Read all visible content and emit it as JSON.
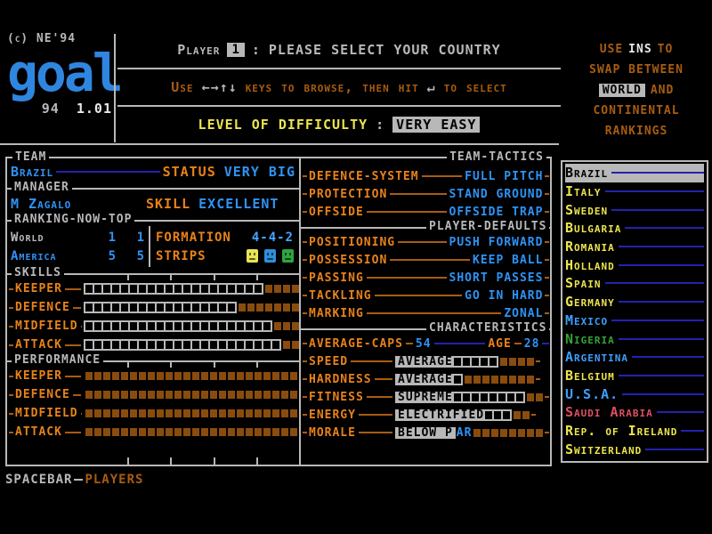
{
  "header": {
    "copyright": "(c) NE'94",
    "logo": "goal",
    "logo_small": "94",
    "version": "1.01",
    "player_label": "Player",
    "player_number": "1",
    "separator": ":",
    "prompt": "PLEASE SELECT YOUR COUNTRY",
    "browse": {
      "use": "Use",
      "arrows": "←→↑↓",
      "mid": "keys to browse, then hit",
      "enter": "↵",
      "tail": "to select"
    },
    "difficulty_label": "LEVEL OF DIFFICULTY",
    "difficulty_sep": ":",
    "difficulty_value": "VERY EASY"
  },
  "ins_note": {
    "lines": [
      [
        {
          "t": "USE",
          "c": "brown"
        },
        {
          "t": "INS",
          "c": "white"
        },
        {
          "t": "TO",
          "c": "brown"
        }
      ],
      [
        {
          "t": "SWAP BETWEEN",
          "c": "brown"
        }
      ],
      [
        {
          "t": "WORLD",
          "c": "hl"
        },
        {
          "t": "AND",
          "c": "brown"
        }
      ],
      [
        {
          "t": "CONTINENTAL",
          "c": "brown"
        }
      ],
      [
        {
          "t": "RANKINGS",
          "c": "brown"
        }
      ]
    ]
  },
  "team": {
    "legend": "TEAM",
    "name": "Brazil",
    "status_label": "STATUS",
    "status_value": "VERY BIG",
    "manager_legend": "MANAGER",
    "manager": "M Zagalo",
    "skill_label": "SKILL",
    "skill_value": "EXCELLENT"
  },
  "ranking": {
    "legend": "RANKING-NOW-TOP",
    "rows": [
      {
        "label": "World",
        "color": "grey",
        "now": "1",
        "top": "1"
      },
      {
        "label": "America",
        "color": "blue",
        "now": "5",
        "top": "5"
      }
    ],
    "formation_label": "FORMATION",
    "formation": "4-4-2",
    "strips_label": "STRIPS",
    "strips": [
      "#e8e456",
      "#2f8fd8",
      "#2fa33f"
    ]
  },
  "skills": {
    "legend": "SKILLS",
    "total": 24,
    "bars": [
      {
        "label": "KEEPER",
        "filled": 20
      },
      {
        "label": "DEFENCE",
        "filled": 17
      },
      {
        "label": "MIDFIELD",
        "filled": 21
      },
      {
        "label": "ATTACK",
        "filled": 22
      }
    ]
  },
  "performance": {
    "legend": "PERFORMANCE",
    "total": 24,
    "bars": [
      {
        "label": "KEEPER",
        "filled": 0
      },
      {
        "label": "DEFENCE",
        "filled": 0
      },
      {
        "label": "MIDFIELD",
        "filled": 0
      },
      {
        "label": "ATTACK",
        "filled": 0
      }
    ]
  },
  "tactics": {
    "legend": "TEAM-TACTICS",
    "rows": [
      {
        "label": "DEFENCE-SYSTEM",
        "value": "FULL PITCH"
      },
      {
        "label": "PROTECTION",
        "value": "STAND GROUND"
      },
      {
        "label": "OFFSIDE",
        "value": "OFFSIDE TRAP"
      }
    ]
  },
  "defaults": {
    "legend": "PLAYER-DEFAULTS",
    "rows": [
      {
        "label": "POSITIONING",
        "value": "PUSH FORWARD"
      },
      {
        "label": "POSSESSION",
        "value": "KEEP BALL"
      },
      {
        "label": "PASSING",
        "value": "SHORT PASSES"
      },
      {
        "label": "TACKLING",
        "value": "GO IN HARD"
      },
      {
        "label": "MARKING",
        "value": "ZONAL"
      }
    ]
  },
  "characteristics": {
    "legend": "CHARACTERISTICS",
    "caps_label": "AVERAGE-CAPS",
    "caps": "54",
    "age_label": "AGE",
    "age": "28",
    "rows": [
      {
        "label": "SPEED",
        "level": "AVERAGE",
        "split": 7,
        "filled": 5,
        "empty": 4
      },
      {
        "label": "HARDNESS",
        "level": "AVERAGE",
        "split": 7,
        "filled": 1,
        "empty": 8
      },
      {
        "label": "FITNESS",
        "level": "SUPREME",
        "split": 7,
        "filled": 8,
        "empty": 2
      },
      {
        "label": "ENERGY",
        "level": "ELECTRIFIED",
        "split": 11,
        "filled": 3,
        "empty": 2
      },
      {
        "label": "MORALE",
        "level": "BELOW PAR",
        "split": 7,
        "filled": 0,
        "empty": 8
      }
    ]
  },
  "countries": {
    "selected": "Brazil",
    "items": [
      {
        "name": "Brazil",
        "color": "selected"
      },
      {
        "name": "Italy",
        "color": "yellow"
      },
      {
        "name": "Sweden",
        "color": "yellow"
      },
      {
        "name": "Bulgaria",
        "color": "yellow"
      },
      {
        "name": "Romania",
        "color": "yellow"
      },
      {
        "name": "Holland",
        "color": "yellow"
      },
      {
        "name": "Spain",
        "color": "yellow"
      },
      {
        "name": "Germany",
        "color": "yellow"
      },
      {
        "name": "Mexico",
        "color": "blue"
      },
      {
        "name": "Nigeria",
        "color": "green"
      },
      {
        "name": "Argentina",
        "color": "blue"
      },
      {
        "name": "Belgium",
        "color": "yellow"
      },
      {
        "name": "U.S.A.",
        "color": "blue"
      },
      {
        "name": "Saudi Arabia",
        "color": "red"
      },
      {
        "name": "Rep. of Ireland",
        "color": "yellow"
      },
      {
        "name": "Switzerland",
        "color": "yellow"
      }
    ]
  },
  "footer": {
    "key": "SPACEBAR",
    "action": "PLAYERS"
  },
  "colors": {
    "orange": "#e8821a",
    "brown": "#a85c12",
    "blue": "#2f93f5",
    "navy": "#2222b2",
    "grey": "#b8b8b8",
    "yellow": "#ece44e",
    "green": "#36a336",
    "red": "#e04f63",
    "bar_fill": "#000000",
    "bar_empty": "#8a4c0e",
    "bar_bg": "#b8b8b8"
  }
}
